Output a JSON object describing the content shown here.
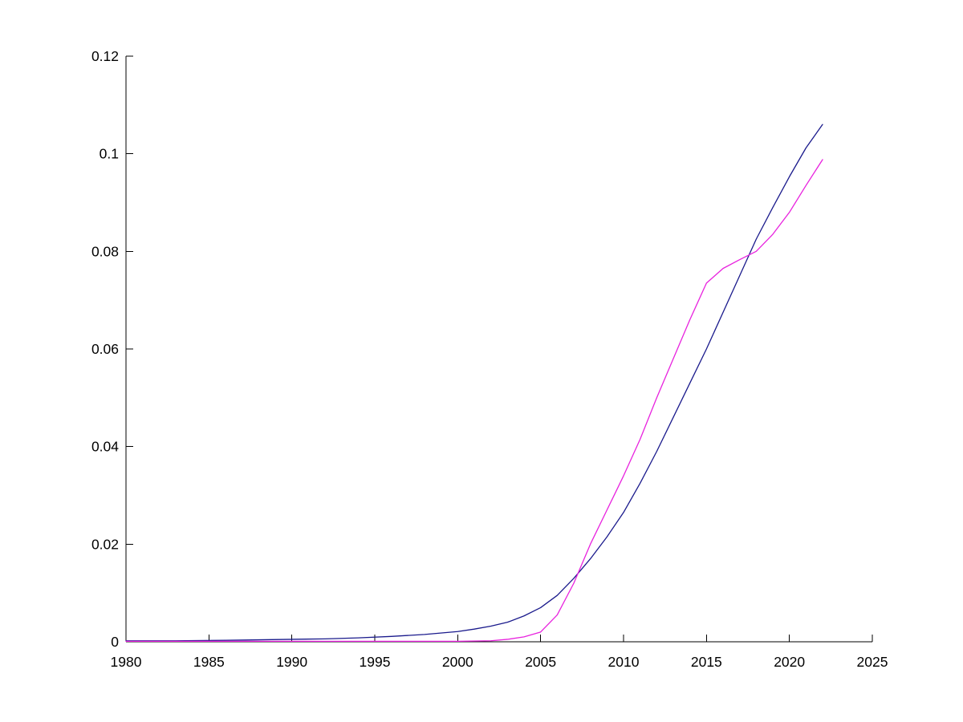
{
  "chart_data": {
    "type": "line",
    "title": "",
    "xlabel": "",
    "ylabel": "",
    "xlim": [
      1980,
      2025
    ],
    "ylim": [
      0,
      0.12
    ],
    "grid": false,
    "legend_position": "none",
    "background_color": "#FFFFFF",
    "axis_color": "#000000",
    "x_ticks": [
      1980,
      1985,
      1990,
      1995,
      2000,
      2005,
      2010,
      2015,
      2020,
      2025
    ],
    "x_tick_labels": [
      "1980",
      "1985",
      "1990",
      "1995",
      "2000",
      "2005",
      "2010",
      "2015",
      "2020",
      "2025"
    ],
    "y_ticks": [
      0,
      0.02,
      0.04,
      0.06,
      0.08,
      0.1,
      0.12
    ],
    "y_tick_labels": [
      "0",
      "0.02",
      "0.04",
      "0.06",
      "0.08",
      "0.1",
      "0.12"
    ],
    "series": [
      {
        "name": "dark-blue-line",
        "color": "#1A1A8C",
        "points": [
          [
            1980,
            0.0002
          ],
          [
            1983,
            0.0002
          ],
          [
            1986,
            0.0003
          ],
          [
            1988,
            0.0004
          ],
          [
            1990,
            0.0005
          ],
          [
            1992,
            0.0006
          ],
          [
            1994,
            0.0008
          ],
          [
            1996,
            0.0011
          ],
          [
            1998,
            0.0015
          ],
          [
            2000,
            0.0021
          ],
          [
            2001,
            0.0026
          ],
          [
            2002,
            0.0032
          ],
          [
            2003,
            0.004
          ],
          [
            2004,
            0.0053
          ],
          [
            2005,
            0.007
          ],
          [
            2006,
            0.0095
          ],
          [
            2007,
            0.013
          ],
          [
            2008,
            0.017
          ],
          [
            2009,
            0.0215
          ],
          [
            2010,
            0.0265
          ],
          [
            2011,
            0.0325
          ],
          [
            2012,
            0.039
          ],
          [
            2013,
            0.046
          ],
          [
            2014,
            0.053
          ],
          [
            2015,
            0.06
          ],
          [
            2016,
            0.0675
          ],
          [
            2017,
            0.075
          ],
          [
            2018,
            0.0825
          ],
          [
            2019,
            0.089
          ],
          [
            2020,
            0.0953
          ],
          [
            2021,
            0.1012
          ],
          [
            2022,
            0.106
          ]
        ]
      },
      {
        "name": "magenta-line",
        "color": "#E822DE",
        "points": [
          [
            1980,
            0.0001
          ],
          [
            1985,
            0.0001
          ],
          [
            1990,
            0.0001
          ],
          [
            1995,
            0.0001
          ],
          [
            2000,
            0.0001
          ],
          [
            2002,
            0.0002
          ],
          [
            2003,
            0.0005
          ],
          [
            2004,
            0.001
          ],
          [
            2005,
            0.002
          ],
          [
            2006,
            0.0055
          ],
          [
            2007,
            0.012
          ],
          [
            2008,
            0.02
          ],
          [
            2009,
            0.027
          ],
          [
            2010,
            0.034
          ],
          [
            2011,
            0.0415
          ],
          [
            2012,
            0.05
          ],
          [
            2013,
            0.058
          ],
          [
            2014,
            0.066
          ],
          [
            2015,
            0.0735
          ],
          [
            2016,
            0.0765
          ],
          [
            2017,
            0.0783
          ],
          [
            2018,
            0.08
          ],
          [
            2019,
            0.0835
          ],
          [
            2020,
            0.088
          ],
          [
            2021,
            0.0935
          ],
          [
            2022,
            0.0988
          ]
        ]
      }
    ]
  }
}
